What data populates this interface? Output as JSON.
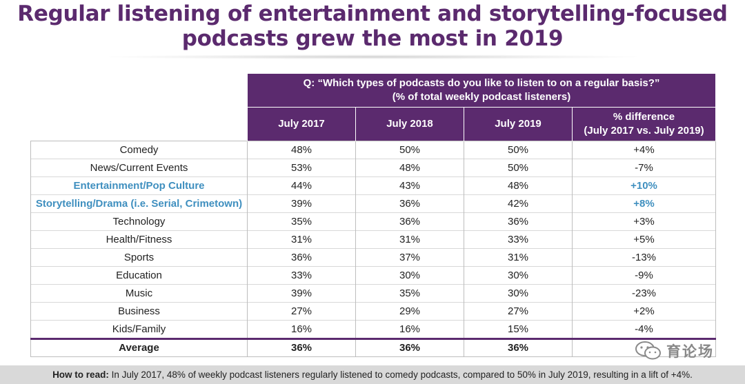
{
  "title": {
    "line1": "Regular listening of entertainment and storytelling-focused",
    "line2": "podcasts grew the most in 2019"
  },
  "table": {
    "question_line1": "Q: “Which types of podcasts do you like to listen to on a regular basis?”",
    "question_line2": "(% of total weekly podcast listeners)",
    "col_2017": "July 2017",
    "col_2018": "July 2018",
    "col_2019": "July 2019",
    "col_diff_line1": "% difference",
    "col_diff_line2": "(July 2017 vs. July 2019)",
    "rows": [
      {
        "label": "Comedy",
        "y2017": "48%",
        "y2018": "50%",
        "y2019": "50%",
        "diff": "+4%"
      },
      {
        "label": "News/Current Events",
        "y2017": "53%",
        "y2018": "48%",
        "y2019": "50%",
        "diff": "-7%"
      },
      {
        "label": "Entertainment/Pop Culture",
        "y2017": "44%",
        "y2018": "43%",
        "y2019": "48%",
        "diff": "+10%"
      },
      {
        "label": "Storytelling/Drama (i.e. Serial, Crimetown)",
        "y2017": "39%",
        "y2018": "36%",
        "y2019": "42%",
        "diff": "+8%"
      },
      {
        "label": "Technology",
        "y2017": "35%",
        "y2018": "36%",
        "y2019": "36%",
        "diff": "+3%"
      },
      {
        "label": "Health/Fitness",
        "y2017": "31%",
        "y2018": "31%",
        "y2019": "33%",
        "diff": "+5%"
      },
      {
        "label": "Sports",
        "y2017": "36%",
        "y2018": "37%",
        "y2019": "31%",
        "diff": "-13%"
      },
      {
        "label": "Education",
        "y2017": "33%",
        "y2018": "30%",
        "y2019": "30%",
        "diff": "-9%"
      },
      {
        "label": "Music",
        "y2017": "39%",
        "y2018": "35%",
        "y2019": "30%",
        "diff": "-23%"
      },
      {
        "label": "Business",
        "y2017": "27%",
        "y2018": "29%",
        "y2019": "27%",
        "diff": "+2%"
      },
      {
        "label": "Kids/Family",
        "y2017": "16%",
        "y2018": "16%",
        "y2019": "15%",
        "diff": "-4%"
      }
    ],
    "average": {
      "label": "Average",
      "y2017": "36%",
      "y2018": "36%",
      "y2019": "36%"
    }
  },
  "footer": {
    "lead": "How to read:",
    "text": " In July 2017, 48% of weekly podcast listeners regularly listened to comedy podcasts, compared to 50% in July 2019, resulting in a lift of +4%."
  },
  "watermark": {
    "icon": "wechat-icon",
    "text": "育论场"
  },
  "colors": {
    "header_purple": "#5b2a6e",
    "highlight_blue": "#3f8fbf",
    "footer_gray": "#d9d9d9"
  }
}
